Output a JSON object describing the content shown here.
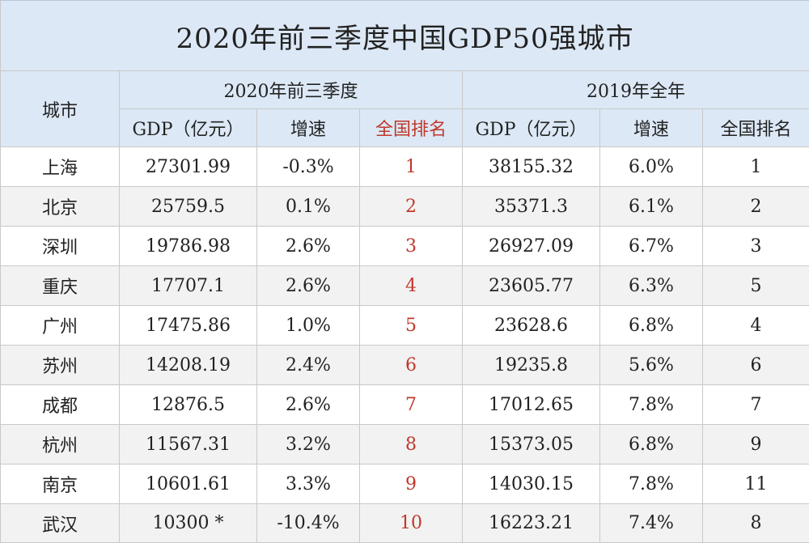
{
  "title": "2020年前三季度中国GDP50强城市",
  "headers": {
    "city": "城市",
    "group1": "2020年前三季度",
    "group2": "2019年全年",
    "gdp": "GDP（亿元）",
    "growth": "增速",
    "rank": "全国排名"
  },
  "colors": {
    "header_bg": "#dce8f5",
    "rank_2020": "#c0392b"
  },
  "rows": [
    {
      "city": "上海",
      "gdp2020": "27301.99",
      "growth2020": "-0.3%",
      "rank2020": "1",
      "gdp2019": "38155.32",
      "growth2019": "6.0%",
      "rank2019": "1"
    },
    {
      "city": "北京",
      "gdp2020": "25759.5",
      "growth2020": "0.1%",
      "rank2020": "2",
      "gdp2019": "35371.3",
      "growth2019": "6.1%",
      "rank2019": "2"
    },
    {
      "city": "深圳",
      "gdp2020": "19786.98",
      "growth2020": "2.6%",
      "rank2020": "3",
      "gdp2019": "26927.09",
      "growth2019": "6.7%",
      "rank2019": "3"
    },
    {
      "city": "重庆",
      "gdp2020": "17707.1",
      "growth2020": "2.6%",
      "rank2020": "4",
      "gdp2019": "23605.77",
      "growth2019": "6.3%",
      "rank2019": "5"
    },
    {
      "city": "广州",
      "gdp2020": "17475.86",
      "growth2020": "1.0%",
      "rank2020": "5",
      "gdp2019": "23628.6",
      "growth2019": "6.8%",
      "rank2019": "4"
    },
    {
      "city": "苏州",
      "gdp2020": "14208.19",
      "growth2020": "2.4%",
      "rank2020": "6",
      "gdp2019": "19235.8",
      "growth2019": "5.6%",
      "rank2019": "6"
    },
    {
      "city": "成都",
      "gdp2020": "12876.5",
      "growth2020": "2.6%",
      "rank2020": "7",
      "gdp2019": "17012.65",
      "growth2019": "7.8%",
      "rank2019": "7"
    },
    {
      "city": "杭州",
      "gdp2020": "11567.31",
      "growth2020": "3.2%",
      "rank2020": "8",
      "gdp2019": "15373.05",
      "growth2019": "6.8%",
      "rank2019": "9"
    },
    {
      "city": "南京",
      "gdp2020": "10601.61",
      "growth2020": "3.3%",
      "rank2020": "9",
      "gdp2019": "14030.15",
      "growth2019": "7.8%",
      "rank2019": "11"
    },
    {
      "city": "武汉",
      "gdp2020": "10300 *",
      "growth2020": "-10.4%",
      "rank2020": "10",
      "gdp2019": "16223.21",
      "growth2019": "7.4%",
      "rank2019": "8"
    }
  ]
}
